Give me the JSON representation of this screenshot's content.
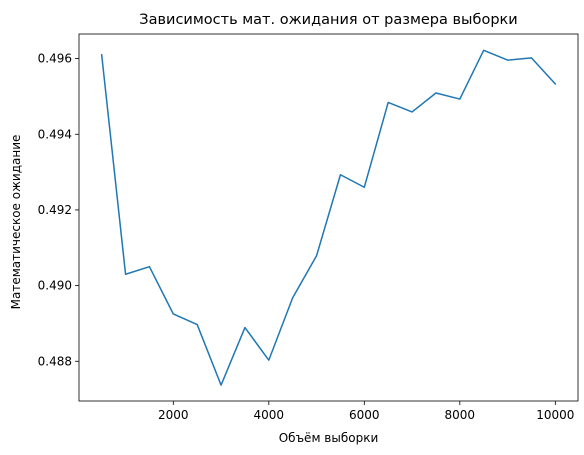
{
  "chart_data": {
    "type": "line",
    "title": "Зависимость мат. ожидания от размера выборки",
    "xlabel": "Объём выборки",
    "ylabel": "Математическое ожидание",
    "xlim": [
      25,
      10475
    ],
    "ylim": [
      0.48695,
      0.49665
    ],
    "xticks": [
      2000,
      4000,
      6000,
      8000,
      10000
    ],
    "xtick_labels": [
      "2000",
      "4000",
      "6000",
      "8000",
      "10000"
    ],
    "yticks": [
      0.488,
      0.49,
      0.492,
      0.494,
      0.496
    ],
    "ytick_labels": [
      "0.488",
      "0.490",
      "0.492",
      "0.494",
      "0.496"
    ],
    "grid": false,
    "series": [
      {
        "color": "#1f77b4",
        "x": [
          500,
          1000,
          1500,
          2000,
          2500,
          3000,
          3500,
          4000,
          4500,
          5000,
          5500,
          6000,
          6500,
          7000,
          7500,
          8000,
          8500,
          9000,
          9500,
          10000
        ],
        "y": [
          0.4961,
          0.4903,
          0.4905,
          0.48925,
          0.48897,
          0.48737,
          0.48889,
          0.48803,
          0.48968,
          0.49079,
          0.49293,
          0.4926,
          0.49484,
          0.49459,
          0.49509,
          0.49493,
          0.49622,
          0.49596,
          0.49602,
          0.49533
        ]
      }
    ]
  }
}
